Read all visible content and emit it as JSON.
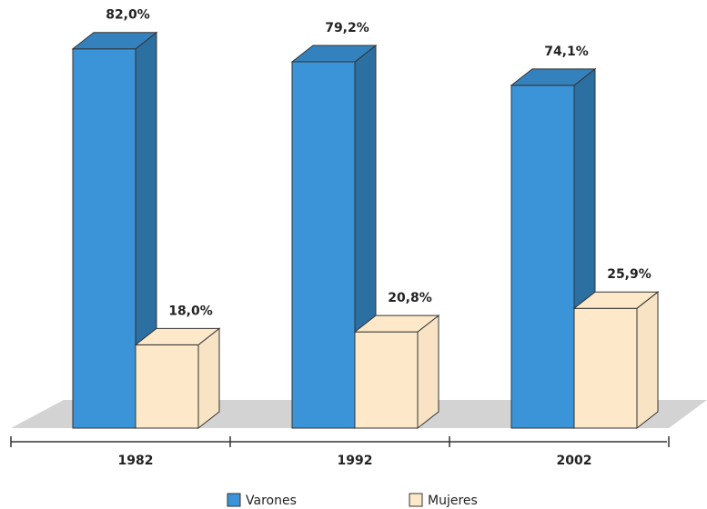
{
  "chart_data": {
    "type": "bar3d",
    "categories": [
      "1982",
      "1992",
      "2002"
    ],
    "series": [
      {
        "name": "Varones",
        "color": "#3b94d7",
        "values": [
          82.0,
          79.2,
          74.1
        ],
        "value_labels": [
          "82,0%",
          "79,2%",
          "74,1%"
        ]
      },
      {
        "name": "Mujeres",
        "color": "#fde9c9",
        "values": [
          18.0,
          20.8,
          25.9
        ],
        "value_labels": [
          "18,0%",
          "20,8%",
          "25,9%"
        ]
      }
    ],
    "ylim": [
      0,
      90
    ]
  }
}
